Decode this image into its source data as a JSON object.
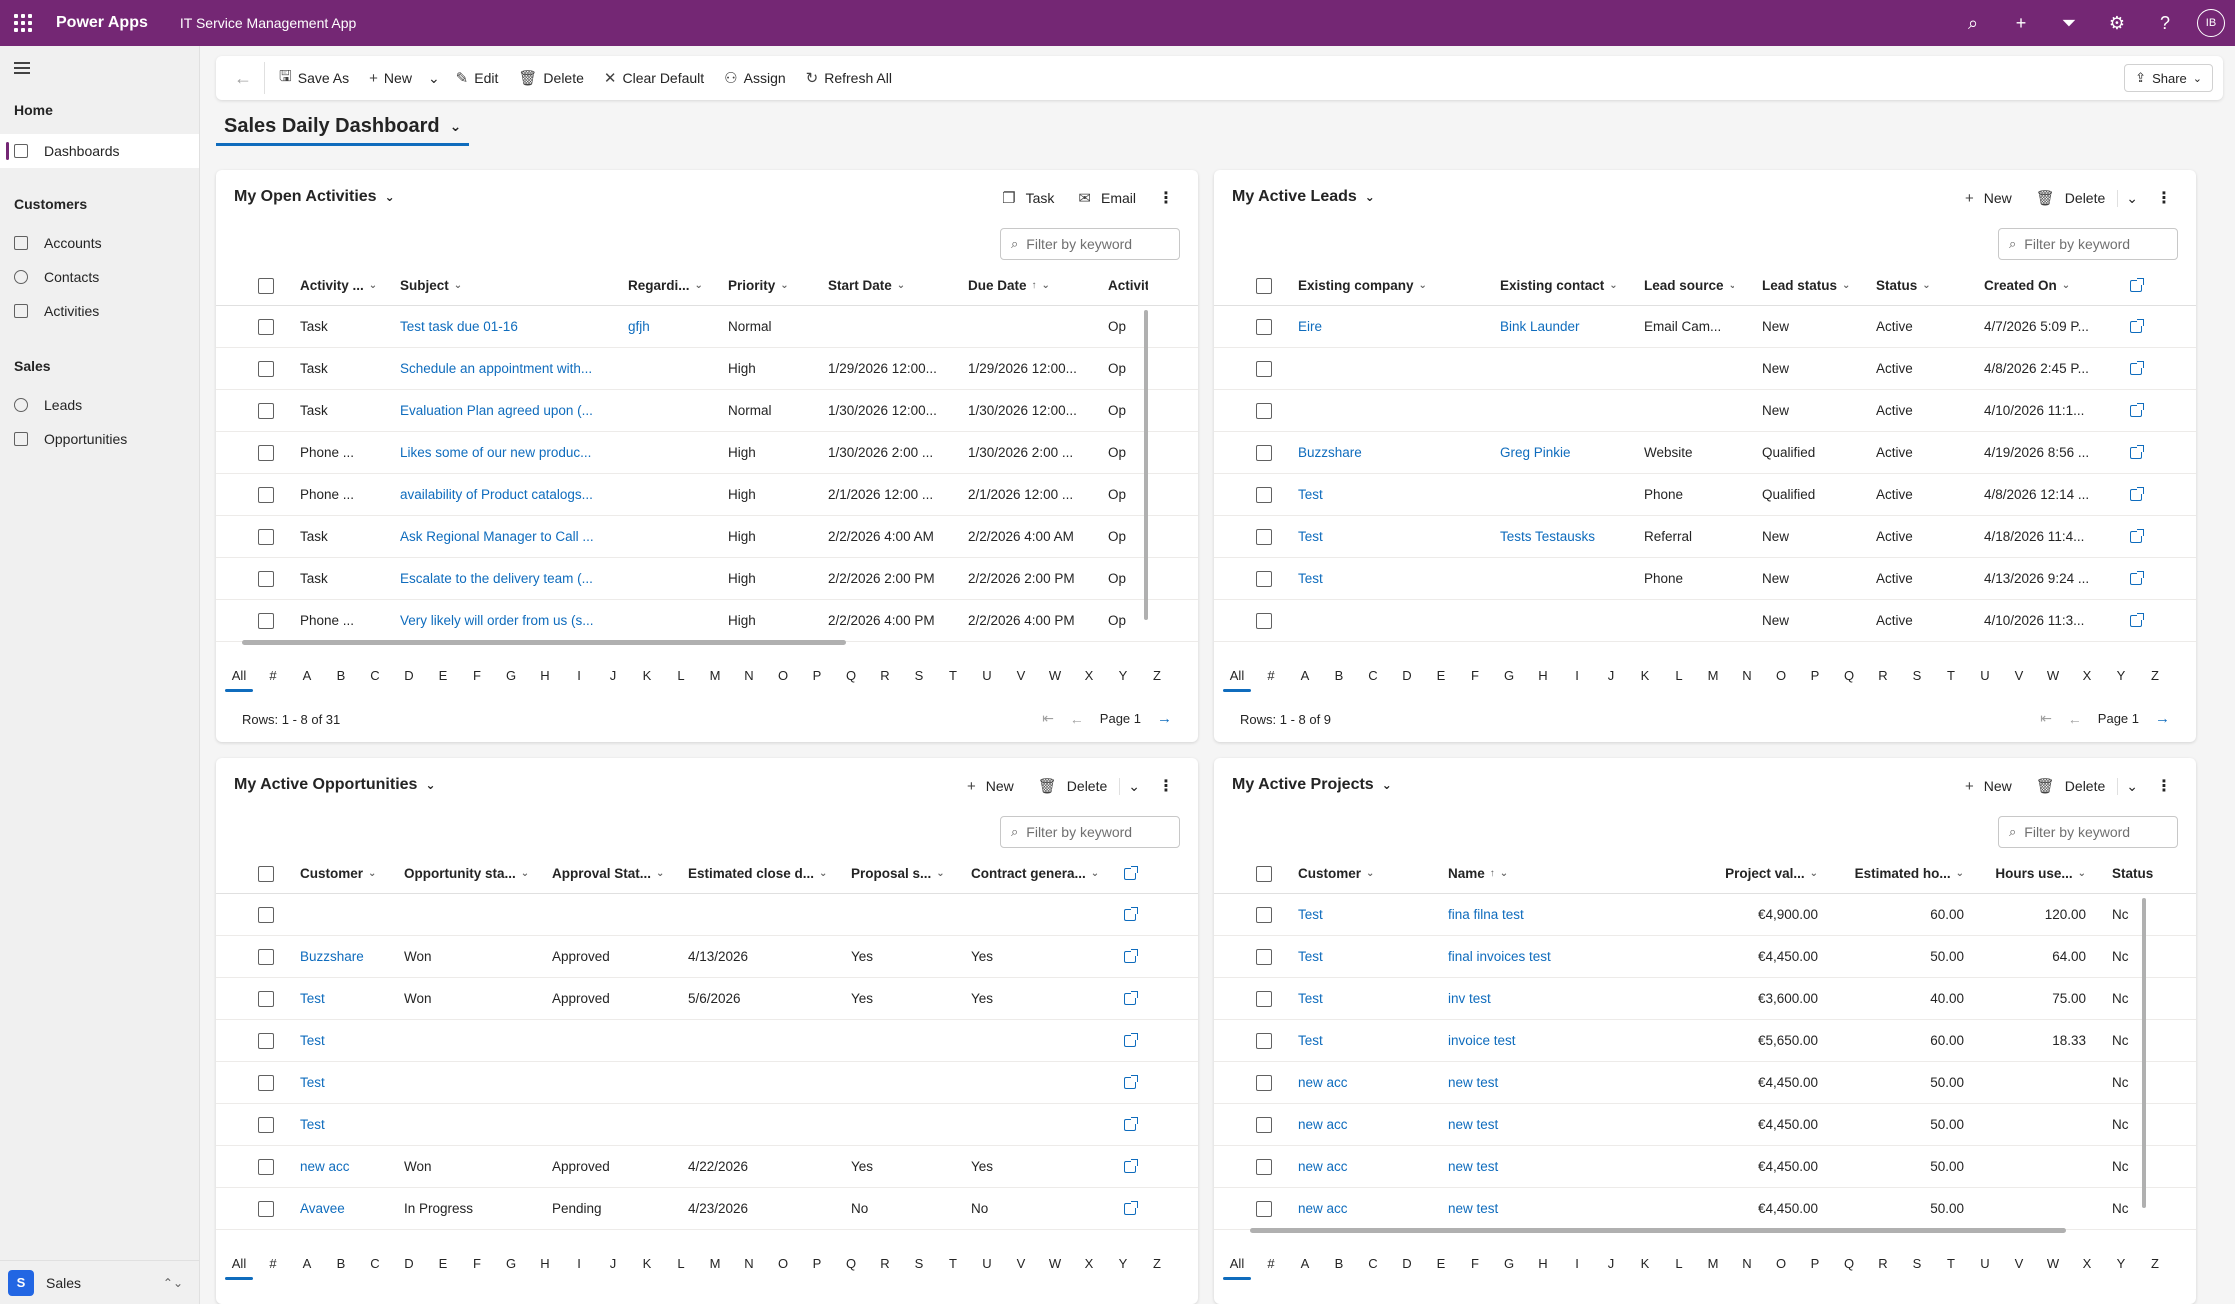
{
  "topbar": {
    "brand": "Power Apps",
    "app_name": "IT Service Management App",
    "avatar_initials": "IB"
  },
  "sidebar": {
    "sections": [
      {
        "title": "Home",
        "items": [
          {
            "label": "Dashboards",
            "icon": "dashboard-icon",
            "active": true
          }
        ]
      },
      {
        "title": "Customers",
        "items": [
          {
            "label": "Accounts",
            "icon": "building-icon"
          },
          {
            "label": "Contacts",
            "icon": "person-icon"
          },
          {
            "label": "Activities",
            "icon": "clipboard-icon"
          }
        ]
      },
      {
        "title": "Sales",
        "items": [
          {
            "label": "Leads",
            "icon": "lightbulb-icon"
          },
          {
            "label": "Opportunities",
            "icon": "document-icon"
          }
        ]
      }
    ],
    "area_badge": "S",
    "area_label": "Sales"
  },
  "commandbar": {
    "save_as": "Save As",
    "new": "New",
    "edit": "Edit",
    "delete": "Delete",
    "clear_default": "Clear Default",
    "assign": "Assign",
    "refresh_all": "Refresh All",
    "share": "Share"
  },
  "dashboard": {
    "title": "Sales Daily Dashboard"
  },
  "filter_placeholder": "Filter by keyword",
  "alphabet": [
    "All",
    "#",
    "A",
    "B",
    "C",
    "D",
    "E",
    "F",
    "G",
    "H",
    "I",
    "J",
    "K",
    "L",
    "M",
    "N",
    "O",
    "P",
    "Q",
    "R",
    "S",
    "T",
    "U",
    "V",
    "W",
    "X",
    "Y",
    "Z"
  ],
  "panels": {
    "activities": {
      "title": "My Open Activities",
      "actions": {
        "task": "Task",
        "email": "Email"
      },
      "columns": [
        "Activity ...",
        "Subject",
        "Regardi...",
        "Priority",
        "Start Date",
        "Due Date",
        "Activity"
      ],
      "rows": [
        [
          "Task",
          "Test task due 01-16",
          "gfjh",
          "Normal",
          "",
          "",
          "Op"
        ],
        [
          "Task",
          "Schedule an appointment with...",
          "",
          "High",
          "1/29/2026 12:00...",
          "1/29/2026 12:00...",
          "Op"
        ],
        [
          "Task",
          "Evaluation Plan agreed upon (...",
          "",
          "Normal",
          "1/30/2026 12:00...",
          "1/30/2026 12:00...",
          "Op"
        ],
        [
          "Phone ...",
          "Likes some of our new produc...",
          "",
          "High",
          "1/30/2026 2:00 ...",
          "1/30/2026 2:00 ...",
          "Op"
        ],
        [
          "Phone ...",
          "availability of Product catalogs...",
          "",
          "High",
          "2/1/2026 12:00 ...",
          "2/1/2026 12:00 ...",
          "Op"
        ],
        [
          "Task",
          "Ask Regional Manager to Call ...",
          "",
          "High",
          "2/2/2026 4:00 AM",
          "2/2/2026 4:00 AM",
          "Op"
        ],
        [
          "Task",
          "Escalate to the delivery team (...",
          "",
          "High",
          "2/2/2026 2:00 PM",
          "2/2/2026 2:00 PM",
          "Op"
        ],
        [
          "Phone ...",
          "Very likely will order from us (s...",
          "",
          "High",
          "2/2/2026 4:00 PM",
          "2/2/2026 4:00 PM",
          "Op"
        ]
      ],
      "rows_info": "Rows: 1 - 8 of 31",
      "page": "Page 1"
    },
    "leads": {
      "title": "My Active Leads",
      "actions": {
        "new": "New",
        "delete": "Delete"
      },
      "columns": [
        "Existing company",
        "Existing contact",
        "Lead source",
        "Lead status",
        "Status",
        "Created On"
      ],
      "rows": [
        [
          "Eire",
          "Bink Launder",
          "Email Cam...",
          "New",
          "Active",
          "4/7/2026 5:09 P..."
        ],
        [
          "",
          "",
          "",
          "New",
          "Active",
          "4/8/2026 2:45 P..."
        ],
        [
          "",
          "",
          "",
          "New",
          "Active",
          "4/10/2026 11:1..."
        ],
        [
          "Buzzshare",
          "Greg Pinkie",
          "Website",
          "Qualified",
          "Active",
          "4/19/2026 8:56 ..."
        ],
        [
          "Test",
          "",
          "Phone",
          "Qualified",
          "Active",
          "4/8/2026 12:14 ..."
        ],
        [
          "Test",
          "Tests Testausks",
          "Referral",
          "New",
          "Active",
          "4/18/2026 11:4..."
        ],
        [
          "Test",
          "",
          "Phone",
          "New",
          "Active",
          "4/13/2026 9:24 ..."
        ],
        [
          "",
          "",
          "",
          "New",
          "Active",
          "4/10/2026 11:3..."
        ]
      ],
      "rows_info": "Rows: 1 - 8 of 9",
      "page": "Page 1"
    },
    "opportunities": {
      "title": "My Active Opportunities",
      "actions": {
        "new": "New",
        "delete": "Delete"
      },
      "columns": [
        "Customer",
        "Opportunity sta...",
        "Approval Stat...",
        "Estimated close d...",
        "Proposal s...",
        "Contract genera..."
      ],
      "rows": [
        [
          "",
          "",
          "",
          "",
          "",
          ""
        ],
        [
          "Buzzshare",
          "Won",
          "Approved",
          "4/13/2026",
          "Yes",
          "Yes"
        ],
        [
          "Test",
          "Won",
          "Approved",
          "5/6/2026",
          "Yes",
          "Yes"
        ],
        [
          "Test",
          "",
          "",
          "",
          "",
          ""
        ],
        [
          "Test",
          "",
          "",
          "",
          "",
          ""
        ],
        [
          "Test",
          "",
          "",
          "",
          "",
          ""
        ],
        [
          "new acc",
          "Won",
          "Approved",
          "4/22/2026",
          "Yes",
          "Yes"
        ],
        [
          "Avavee",
          "In Progress",
          "Pending",
          "4/23/2026",
          "No",
          "No"
        ]
      ]
    },
    "projects": {
      "title": "My Active Projects",
      "actions": {
        "new": "New",
        "delete": "Delete"
      },
      "columns": [
        "Customer",
        "Name",
        "Project val...",
        "Estimated ho...",
        "Hours use...",
        "Status"
      ],
      "rows": [
        [
          "Test",
          "fina filna test",
          "€4,900.00",
          "60.00",
          "120.00",
          "Nc"
        ],
        [
          "Test",
          "final invoices test",
          "€4,450.00",
          "50.00",
          "64.00",
          "Nc"
        ],
        [
          "Test",
          "inv test",
          "€3,600.00",
          "40.00",
          "75.00",
          "Nc"
        ],
        [
          "Test",
          "invoice test",
          "€5,650.00",
          "60.00",
          "18.33",
          "Nc"
        ],
        [
          "new acc",
          "new test",
          "€4,450.00",
          "50.00",
          "",
          "Nc"
        ],
        [
          "new acc",
          "new test",
          "€4,450.00",
          "50.00",
          "",
          "Nc"
        ],
        [
          "new acc",
          "new test",
          "€4,450.00",
          "50.00",
          "",
          "Nc"
        ],
        [
          "new acc",
          "new test",
          "€4,450.00",
          "50.00",
          "",
          "Nc"
        ]
      ]
    }
  }
}
